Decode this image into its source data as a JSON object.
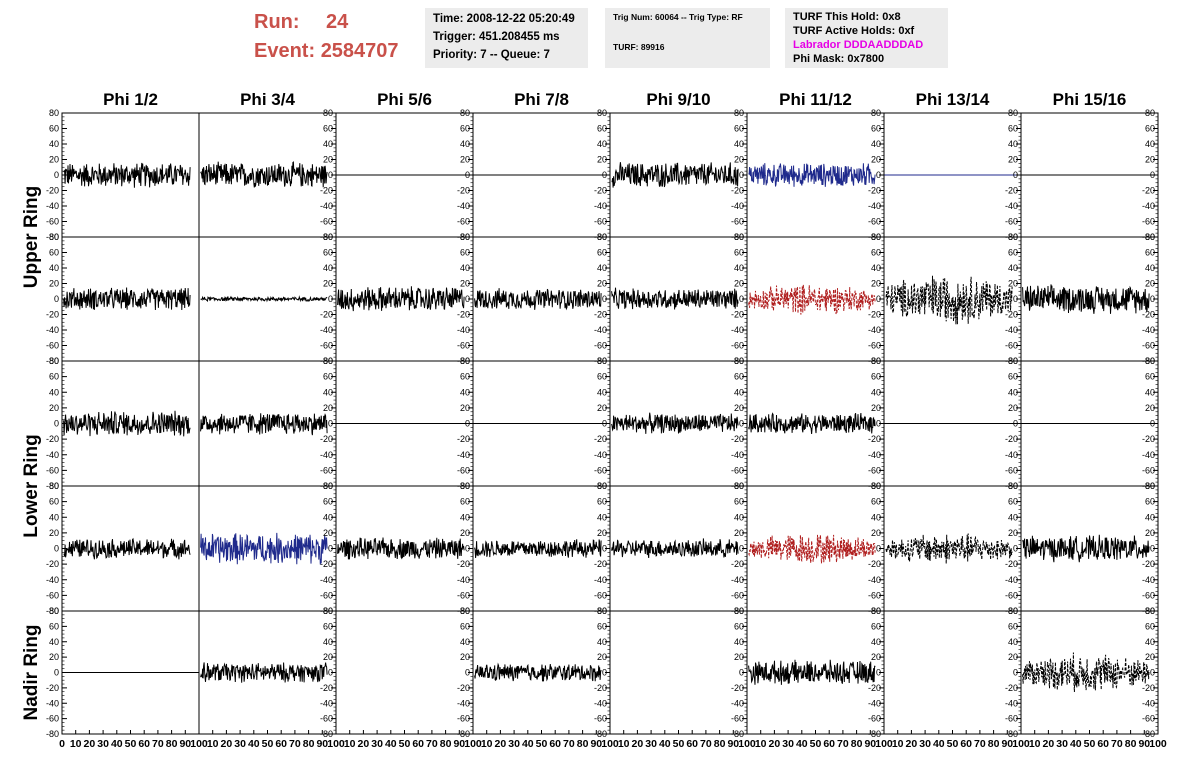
{
  "header": {
    "run_label": "Run:",
    "run_value": "24",
    "event_label": "Event:",
    "event_value": "2584707",
    "time": "Time: 2008-12-22 05:20:49",
    "trigger": "Trigger: 451.208455 ms",
    "priority": "Priority: 7 -- Queue: 7",
    "trig_info": "Trig Num: 60064 -- Trig Type: RF",
    "turf": "TURF: 89916",
    "turf_hold": "TURF This Hold: 0x8",
    "turf_active": "TURF Active Holds: 0xf",
    "labrador": "Labrador DDDAADDDAD",
    "phi_mask": "Phi Mask: 0x7800"
  },
  "colors": {
    "run_text": "#c9514a",
    "panel_bg": "#ececec",
    "labrador": "#e600e6",
    "trace_black": "#000000",
    "trace_blue": "#1f2a8c",
    "trace_red": "#b01e1e"
  },
  "chart_data": {
    "type": "line",
    "columns": [
      "Phi 1/2",
      "Phi 3/4",
      "Phi 5/6",
      "Phi 7/8",
      "Phi 9/10",
      "Phi 11/12",
      "Phi 13/14",
      "Phi 15/16"
    ],
    "row_labels": [
      "Upper Ring",
      "Lower Ring",
      "Nadir Ring"
    ],
    "ylim": [
      -80,
      80
    ],
    "yticks": [
      "80",
      "60",
      "40",
      "20",
      "0",
      "-20",
      "-40",
      "-60",
      "-80"
    ],
    "xlim": [
      0,
      100
    ],
    "xticks": [
      "0",
      "10",
      "20",
      "30",
      "40",
      "50",
      "60",
      "70",
      "80",
      "90",
      "100"
    ],
    "grid": false,
    "rows": [
      [
        "noise:18:black",
        "noise:18:black",
        "flat:black",
        "flat:black",
        "noise:18:black",
        "noise:17:blue",
        "flat:blue",
        "flat:black"
      ],
      [
        "noise:16:black",
        "noise:3:black",
        "noise:18:black",
        "noise:15:black",
        "noise:15:black",
        "dash:22:red",
        "dash:36:black",
        "noise:20:black"
      ],
      [
        "noise:18:black",
        "noise:16:black",
        "flat:black",
        "flat:black",
        "noise:14:black",
        "noise:14:black",
        "flat:black",
        "flat:black"
      ],
      [
        "noise:14:black",
        "noise:22:blue",
        "noise:15:black",
        "noise:13:black",
        "noise:13:black",
        "dash:22:red",
        "dash:22:black",
        "noise:18:black"
      ],
      [
        "flat:black",
        "noise:14:black",
        "empty",
        "noise:13:black",
        "empty",
        "noise:17:black",
        "empty",
        "dash:28:black"
      ]
    ]
  }
}
